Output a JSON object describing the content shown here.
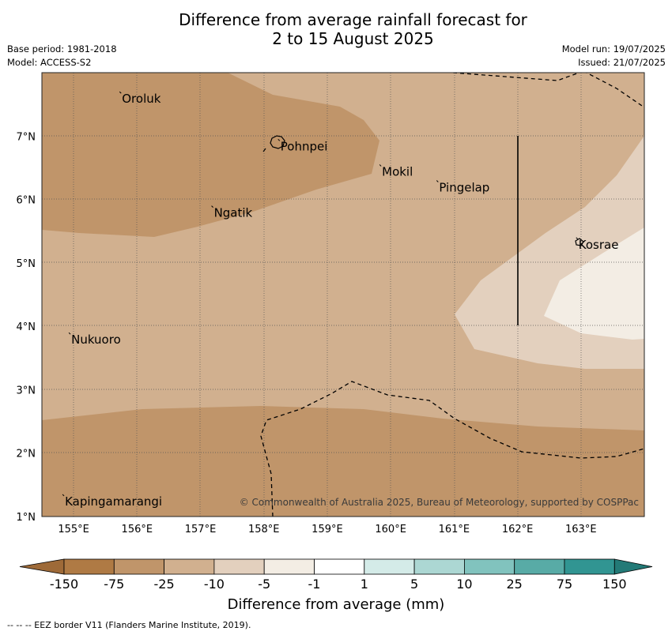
{
  "title": {
    "line1": "Difference from average rainfall forecast for",
    "line2": "2 to 15 August 2025"
  },
  "header_left": {
    "base_period": "Base period: 1981-2018",
    "model": "Model: ACCESS-S2"
  },
  "header_right": {
    "model_run": "Model run: 19/07/2025",
    "issued": "Issued: 21/07/2025"
  },
  "map": {
    "lon_range": [
      154.5,
      164.0
    ],
    "lat_range": [
      1.0,
      8.0
    ],
    "lon_ticks": [
      "155°E",
      "156°E",
      "157°E",
      "158°E",
      "159°E",
      "160°E",
      "161°E",
      "162°E",
      "163°E"
    ],
    "lat_ticks": [
      "1°N",
      "2°N",
      "3°N",
      "4°N",
      "5°N",
      "6°N",
      "7°N"
    ],
    "gridlines": "dotted",
    "places": [
      {
        "name": "Oroluk",
        "lon": 155.75,
        "lat": 7.6
      },
      {
        "name": "Pohnpei",
        "lon": 158.25,
        "lat": 6.85
      },
      {
        "name": "Mokil",
        "lon": 159.85,
        "lat": 6.45
      },
      {
        "name": "Pingelap",
        "lon": 160.75,
        "lat": 6.2
      },
      {
        "name": "Ngatik",
        "lon": 157.2,
        "lat": 5.8
      },
      {
        "name": "Kosrae",
        "lon": 162.95,
        "lat": 5.3
      },
      {
        "name": "Nukuoro",
        "lon": 154.95,
        "lat": 3.8
      },
      {
        "name": "Kapingamarangi",
        "lon": 154.85,
        "lat": 1.25
      }
    ],
    "copyright": "© Commonwealth of Australia 2025, Bureau of Meteorology, supported by COSPPac"
  },
  "colorbar": {
    "ticks": [
      "-150",
      "-75",
      "-25",
      "-10",
      "-5",
      "-1",
      "1",
      "5",
      "10",
      "25",
      "75",
      "150"
    ],
    "colors": [
      "#9e6a38",
      "#af7a44",
      "#c0956a",
      "#d1b08f",
      "#e3d0be",
      "#f3ede4",
      "#ffffff",
      "#d4ebe8",
      "#acd7d3",
      "#81c3be",
      "#58aba6",
      "#319592",
      "#237a77"
    ],
    "label": "Difference from average (mm)"
  },
  "footnote": "--  --  -- EEZ border V11 (Flanders Marine Institute, 2019)."
}
